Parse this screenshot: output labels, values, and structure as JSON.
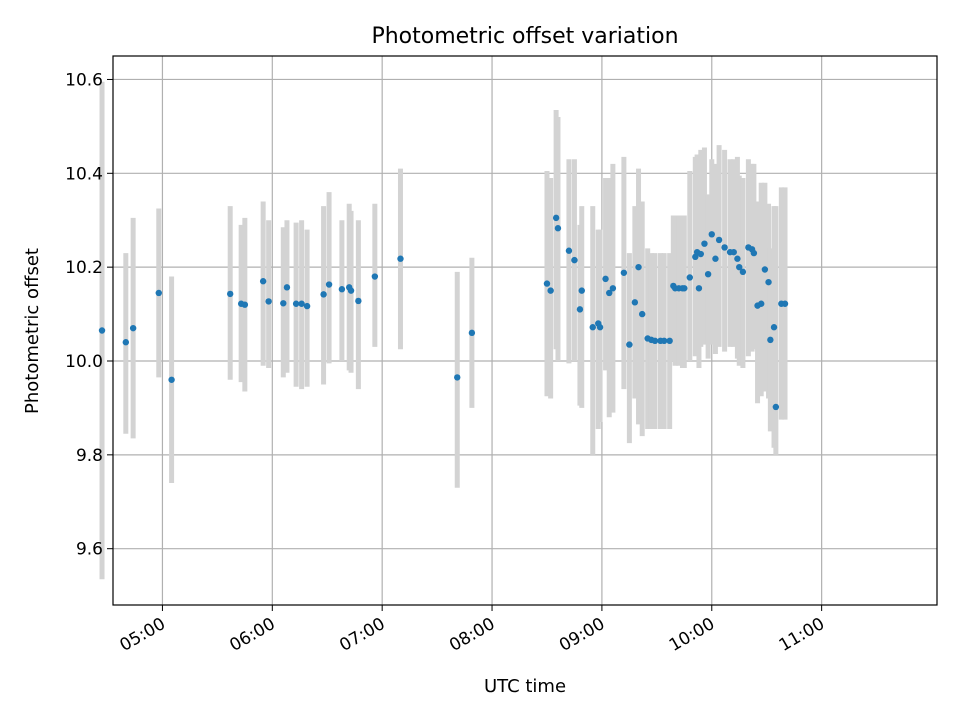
{
  "chart_data": {
    "type": "scatter",
    "title": "Photometric offset variation",
    "xlabel": "UTC time",
    "ylabel": "Photometric offset",
    "xlim": [
      "04:33",
      "12:03"
    ],
    "ylim": [
      9.48,
      10.65
    ],
    "grid": true,
    "legend": "none",
    "x_ticks": [
      "05:00",
      "06:00",
      "07:00",
      "08:00",
      "09:00",
      "10:00",
      "11:00"
    ],
    "y_ticks": [
      9.6,
      9.8,
      10.0,
      10.2,
      10.4,
      10.6
    ],
    "y_tick_labels": [
      "9.6",
      "9.8",
      "10.0",
      "10.2",
      "10.4",
      "10.6"
    ],
    "colors": {
      "point": "#1f77b4",
      "errorbar": "#d3d3d3",
      "grid": "#b0b0b0"
    },
    "series": [
      {
        "x": [
          "04:27",
          "04:40",
          "04:44",
          "04:58",
          "05:05",
          "05:37",
          "05:43",
          "05:45",
          "05:55",
          "05:58",
          "06:06",
          "06:08",
          "06:13",
          "06:16",
          "06:19",
          "06:28",
          "06:31",
          "06:38",
          "06:42",
          "06:43",
          "06:47",
          "06:56",
          "07:10",
          "07:41",
          "07:49",
          "08:30",
          "08:32",
          "08:35",
          "08:36",
          "08:42",
          "08:45",
          "08:48",
          "08:49",
          "08:55",
          "08:58",
          "08:59",
          "09:02",
          "09:04",
          "09:06",
          "09:12",
          "09:15",
          "09:18",
          "09:20",
          "09:22",
          "09:25",
          "09:27",
          "09:29",
          "09:32",
          "09:34",
          "09:37",
          "09:39",
          "09:40",
          "09:42",
          "09:44",
          "09:45",
          "09:48",
          "09:51",
          "09:52",
          "09:53",
          "09:54",
          "09:56",
          "09:58",
          "10:00",
          "10:02",
          "10:04",
          "10:07",
          "10:10",
          "10:12",
          "10:14",
          "10:15",
          "10:17",
          "10:20",
          "10:22",
          "10:23",
          "10:25",
          "10:27",
          "10:29",
          "10:31",
          "10:32",
          "10:34",
          "10:35",
          "10:38",
          "10:40"
        ],
        "y": [
          10.065,
          10.04,
          10.07,
          10.145,
          9.96,
          10.143,
          10.122,
          10.12,
          10.17,
          10.127,
          10.123,
          10.157,
          10.122,
          10.122,
          10.117,
          10.142,
          10.163,
          10.153,
          10.157,
          10.15,
          10.128,
          10.18,
          10.218,
          9.965,
          10.06,
          10.165,
          10.15,
          10.305,
          10.283,
          10.235,
          10.215,
          10.11,
          10.15,
          10.072,
          10.08,
          10.072,
          10.175,
          10.145,
          10.155,
          10.188,
          10.035,
          10.125,
          10.2,
          10.1,
          10.048,
          10.045,
          10.043,
          10.043,
          10.043,
          10.043,
          10.16,
          10.155,
          10.155,
          10.155,
          10.155,
          10.178,
          10.222,
          10.232,
          10.155,
          10.228,
          10.25,
          10.185,
          10.27,
          10.218,
          10.258,
          10.242,
          10.232,
          10.232,
          10.218,
          10.2,
          10.19,
          10.242,
          10.238,
          10.23,
          10.118,
          10.122,
          10.195,
          10.168,
          10.045,
          10.072,
          9.902,
          10.122,
          10.122
        ],
        "yerr_low": [
          9.535,
          9.845,
          9.835,
          9.965,
          9.74,
          9.96,
          9.955,
          9.935,
          9.99,
          9.985,
          9.965,
          9.975,
          9.945,
          9.94,
          9.945,
          9.95,
          9.995,
          10.0,
          9.98,
          9.975,
          9.94,
          10.03,
          10.025,
          9.73,
          9.9,
          9.925,
          9.92,
          10.025,
          10.0,
          9.995,
          10.0,
          9.905,
          9.9,
          9.8,
          9.855,
          9.87,
          9.98,
          9.88,
          9.89,
          9.94,
          9.825,
          9.92,
          9.865,
          9.84,
          9.855,
          9.855,
          9.855,
          9.855,
          9.855,
          9.855,
          10.0,
          9.99,
          9.99,
          9.985,
          9.985,
          10.0,
          10.01,
          10.015,
          9.985,
          10.03,
          10.035,
          10.005,
          10.035,
          10.015,
          10.03,
          10.02,
          10.03,
          10.03,
          10.005,
          9.99,
          9.985,
          10.01,
          10.02,
          10.025,
          9.91,
          9.925,
          9.935,
          9.92,
          9.85,
          9.815,
          9.8,
          9.875,
          9.875
        ],
        "yerr_high": [
          10.595,
          10.23,
          10.305,
          10.325,
          10.18,
          10.33,
          10.29,
          10.305,
          10.34,
          10.3,
          10.285,
          10.3,
          10.295,
          10.3,
          10.28,
          10.33,
          10.36,
          10.3,
          10.335,
          10.32,
          10.3,
          10.335,
          10.41,
          10.19,
          10.22,
          10.405,
          10.39,
          10.535,
          10.52,
          10.43,
          10.43,
          10.29,
          10.33,
          10.33,
          10.28,
          10.28,
          10.39,
          10.39,
          10.42,
          10.435,
          10.23,
          10.33,
          10.41,
          10.34,
          10.24,
          10.23,
          10.23,
          10.23,
          10.23,
          10.23,
          10.31,
          10.31,
          10.31,
          10.31,
          10.31,
          10.405,
          10.435,
          10.44,
          10.37,
          10.45,
          10.455,
          10.355,
          10.43,
          10.42,
          10.46,
          10.45,
          10.43,
          10.43,
          10.435,
          10.395,
          10.39,
          10.43,
          10.42,
          10.42,
          10.34,
          10.38,
          10.38,
          10.335,
          10.24,
          10.33,
          10.33,
          10.37,
          10.37
        ]
      }
    ]
  }
}
